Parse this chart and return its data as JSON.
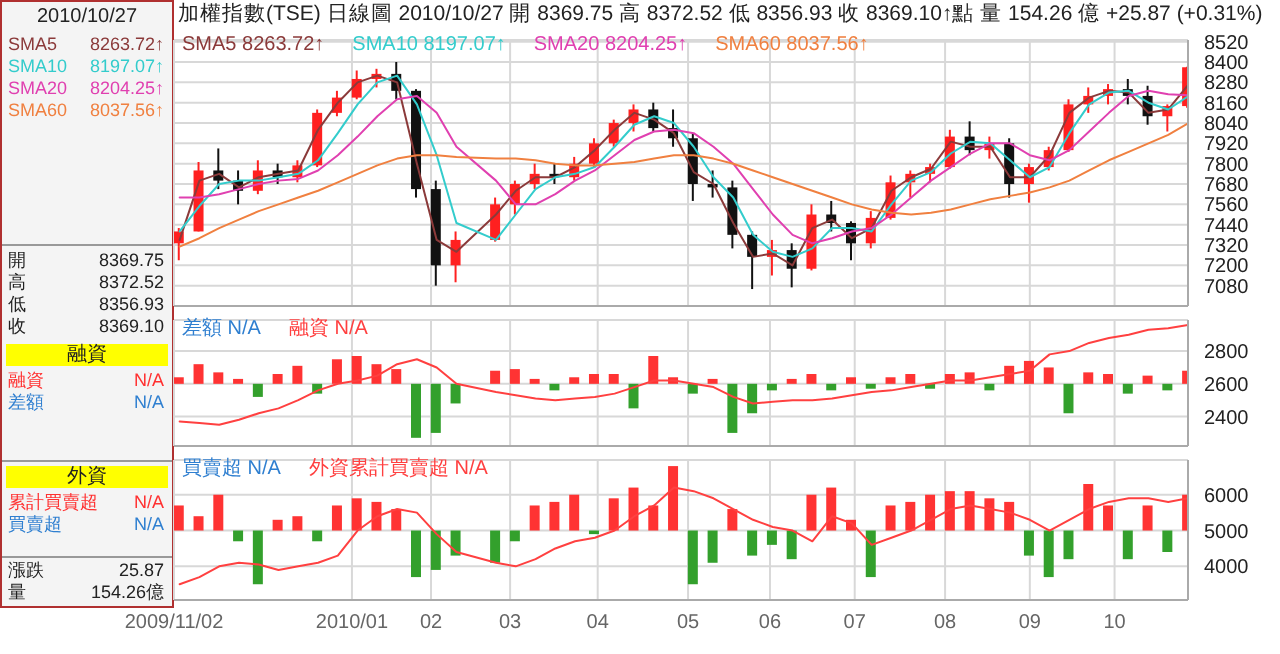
{
  "chart_data": [
    {
      "type": "other",
      "annotations": [
        "2010/10/27",
        "SMA5",
        "8263.72↑",
        "SMA10",
        "8197.07↑",
        "SMA20",
        "8204.25↑",
        "SMA60",
        "8037.56↑",
        "開",
        "8369.75",
        "高",
        "8372.52",
        "低",
        "8356.93",
        "收",
        "8369.10",
        "融資",
        "融資",
        "N/A",
        "差額",
        "N/A",
        "外資",
        "累計買賣超",
        "N/A",
        "買賣超",
        "N/A",
        "漲跌",
        "25.87",
        "量",
        "154.26億"
      ]
    },
    {
      "type": "candlestick",
      "title": "加權指數(TSE)  日線圖  2010/10/27  開 8369.75  高 8372.52  低 8356.93  收 8369.10↑點  量 154.26 億  +25.87 (+0.31%)",
      "x": [
        "2009-11-04",
        "2009-11-11",
        "2009-11-18",
        "2009-11-25",
        "2009-12-02",
        "2009-12-09",
        "2009-12-16",
        "2009-12-23",
        "2009-12-30",
        "2010-01-06",
        "2010-01-13",
        "2010-01-20",
        "2010-01-27",
        "2010-02-03",
        "2010-02-10",
        "2010-02-24",
        "2010-03-03",
        "2010-03-10",
        "2010-03-17",
        "2010-03-24",
        "2010-03-31",
        "2010-04-07",
        "2010-04-14",
        "2010-04-21",
        "2010-04-28",
        "2010-05-05",
        "2010-05-12",
        "2010-05-19",
        "2010-05-26",
        "2010-06-02",
        "2010-06-09",
        "2010-06-16",
        "2010-06-23",
        "2010-06-30",
        "2010-07-07",
        "2010-07-14",
        "2010-07-21",
        "2010-07-28",
        "2010-08-04",
        "2010-08-11",
        "2010-08-18",
        "2010-08-25",
        "2010-09-01",
        "2010-09-08",
        "2010-09-15",
        "2010-09-22",
        "2010-09-29",
        "2010-10-06",
        "2010-10-13",
        "2010-10-20",
        "2010-10-27"
      ],
      "ohlc": [
        [
          7330,
          7420,
          7230,
          7400
        ],
        [
          7400,
          7810,
          7400,
          7760
        ],
        [
          7760,
          7890,
          7650,
          7700
        ],
        [
          7700,
          7760,
          7560,
          7640
        ],
        [
          7640,
          7820,
          7620,
          7760
        ],
        [
          7760,
          7800,
          7680,
          7720
        ],
        [
          7720,
          7820,
          7690,
          7790
        ],
        [
          7790,
          8120,
          7780,
          8100
        ],
        [
          8100,
          8230,
          8080,
          8190
        ],
        [
          8190,
          8350,
          8180,
          8300
        ],
        [
          8300,
          8360,
          8250,
          8330
        ],
        [
          8330,
          8400,
          8180,
          8230
        ],
        [
          8230,
          8240,
          7600,
          7650
        ],
        [
          7650,
          7700,
          7080,
          7200
        ],
        [
          7200,
          7400,
          7100,
          7350
        ],
        [
          7350,
          7600,
          7340,
          7560
        ],
        [
          7560,
          7700,
          7500,
          7680
        ],
        [
          7680,
          7800,
          7650,
          7740
        ],
        [
          7740,
          7800,
          7680,
          7720
        ],
        [
          7720,
          7840,
          7700,
          7800
        ],
        [
          7800,
          7950,
          7780,
          7920
        ],
        [
          7920,
          8060,
          7900,
          8040
        ],
        [
          8040,
          8150,
          7990,
          8120
        ],
        [
          8120,
          8160,
          7990,
          8010
        ],
        [
          8010,
          8120,
          7900,
          7950
        ],
        [
          7950,
          7980,
          7580,
          7680
        ],
        [
          7680,
          7760,
          7600,
          7660
        ],
        [
          7660,
          7700,
          7300,
          7380
        ],
        [
          7380,
          7400,
          7060,
          7250
        ],
        [
          7250,
          7350,
          7140,
          7290
        ],
        [
          7290,
          7330,
          7070,
          7180
        ],
        [
          7180,
          7560,
          7170,
          7500
        ],
        [
          7500,
          7580,
          7400,
          7450
        ],
        [
          7450,
          7460,
          7230,
          7330
        ],
        [
          7330,
          7520,
          7300,
          7480
        ],
        [
          7480,
          7730,
          7470,
          7690
        ],
        [
          7690,
          7760,
          7600,
          7740
        ],
        [
          7740,
          7800,
          7690,
          7780
        ],
        [
          7780,
          8000,
          7770,
          7960
        ],
        [
          7960,
          8050,
          7850,
          7880
        ],
        [
          7880,
          7960,
          7830,
          7920
        ],
        [
          7920,
          7950,
          7600,
          7680
        ],
        [
          7680,
          7800,
          7570,
          7780
        ],
        [
          7780,
          7900,
          7760,
          7880
        ],
        [
          7880,
          8180,
          7870,
          8150
        ],
        [
          8150,
          8250,
          8100,
          8200
        ],
        [
          8200,
          8270,
          8150,
          8240
        ],
        [
          8240,
          8300,
          8150,
          8200
        ],
        [
          8200,
          8260,
          8030,
          8080
        ],
        [
          8080,
          8150,
          7990,
          8140
        ],
        [
          8140,
          8372.52,
          8130,
          8369.1
        ]
      ],
      "series": [
        {
          "name": "SMA5 8263.72↑",
          "type": "line",
          "color": "#8b3a3a",
          "values": [
            7350,
            7700,
            7740,
            7660,
            7720,
            7740,
            7760,
            8000,
            8160,
            8280,
            8320,
            8280,
            7800,
            7350,
            7280,
            7500,
            7640,
            7720,
            7720,
            7780,
            7880,
            8000,
            8100,
            8060,
            7980,
            7750,
            7680,
            7450,
            7250,
            7270,
            7200,
            7420,
            7470,
            7360,
            7420,
            7640,
            7720,
            7770,
            7930,
            7900,
            7900,
            7720,
            7720,
            7850,
            8100,
            8190,
            8230,
            8220,
            8100,
            8120,
            8263.72
          ]
        },
        {
          "name": "SMA10 8197.07↑",
          "type": "line",
          "color": "#33cccc",
          "values": [
            7400,
            7550,
            7680,
            7700,
            7700,
            7720,
            7740,
            7820,
            7980,
            8150,
            8280,
            8320,
            8150,
            7850,
            7450,
            7350,
            7500,
            7650,
            7720,
            7740,
            7780,
            7900,
            8030,
            8080,
            8040,
            7900,
            7720,
            7600,
            7380,
            7280,
            7250,
            7300,
            7420,
            7420,
            7400,
            7560,
            7700,
            7750,
            7860,
            7930,
            7920,
            7820,
            7720,
            7780,
            7980,
            8150,
            8220,
            8230,
            8160,
            8120,
            8197.07
          ]
        },
        {
          "name": "SMA20 8204.25↑",
          "type": "line",
          "color": "#e040b0",
          "values": [
            7600,
            7600,
            7620,
            7650,
            7680,
            7700,
            7710,
            7760,
            7850,
            7960,
            8080,
            8180,
            8200,
            8100,
            7900,
            7700,
            7560,
            7560,
            7620,
            7700,
            7760,
            7850,
            7940,
            7990,
            8000,
            7980,
            7900,
            7800,
            7650,
            7500,
            7380,
            7330,
            7360,
            7400,
            7420,
            7500,
            7600,
            7700,
            7780,
            7860,
            7920,
            7920,
            7850,
            7820,
            7880,
            7990,
            8100,
            8200,
            8230,
            8210,
            8204.25
          ]
        },
        {
          "name": "SMA60 8037.56↑",
          "type": "line",
          "color": "#f08040",
          "values": [
            7310,
            7360,
            7420,
            7470,
            7520,
            7560,
            7600,
            7640,
            7690,
            7740,
            7790,
            7830,
            7850,
            7850,
            7840,
            7830,
            7830,
            7820,
            7800,
            7790,
            7790,
            7800,
            7810,
            7830,
            7850,
            7850,
            7830,
            7800,
            7760,
            7720,
            7680,
            7640,
            7600,
            7560,
            7530,
            7510,
            7500,
            7510,
            7530,
            7560,
            7590,
            7610,
            7630,
            7660,
            7700,
            7760,
            7820,
            7870,
            7920,
            7970,
            8037.56
          ]
        }
      ],
      "xlim": [
        "2009-11-02",
        "2010-10-27"
      ],
      "xticks": [
        {
          "value": "2009-11-02",
          "label": null
        },
        {
          "value": "2010-01-04",
          "label": null
        },
        {
          "value": "2010-02-01",
          "label": null
        },
        {
          "value": "2010-03-01",
          "label": null
        },
        {
          "value": "2010-04-01",
          "label": null
        },
        {
          "value": "2010-05-03",
          "label": null
        },
        {
          "value": "2010-06-01",
          "label": null
        },
        {
          "value": "2010-07-01",
          "label": null
        },
        {
          "value": "2010-08-02",
          "label": null
        },
        {
          "value": "2010-09-01",
          "label": null
        },
        {
          "value": "2010-10-01",
          "label": null
        }
      ],
      "ylim": [
        6960,
        8530
      ],
      "yticks": [
        7080,
        7200,
        7320,
        7440,
        7560,
        7680,
        7800,
        7920,
        8040,
        8160,
        8280,
        8400,
        8520
      ],
      "grid": true,
      "legend": "top left",
      "tick_labels": "y",
      "marker": "none"
    },
    {
      "type": "bar",
      "x": [
        "2009-11-04",
        "2009-11-11",
        "2009-11-18",
        "2009-11-25",
        "2009-12-02",
        "2009-12-09",
        "2009-12-16",
        "2009-12-23",
        "2009-12-30",
        "2010-01-06",
        "2010-01-13",
        "2010-01-20",
        "2010-01-27",
        "2010-02-03",
        "2010-02-10",
        "2010-02-24",
        "2010-03-03",
        "2010-03-10",
        "2010-03-17",
        "2010-03-24",
        "2010-03-31",
        "2010-04-07",
        "2010-04-14",
        "2010-04-21",
        "2010-04-28",
        "2010-05-05",
        "2010-05-12",
        "2010-05-19",
        "2010-05-26",
        "2010-06-02",
        "2010-06-09",
        "2010-06-16",
        "2010-06-23",
        "2010-06-30",
        "2010-07-07",
        "2010-07-14",
        "2010-07-21",
        "2010-07-28",
        "2010-08-04",
        "2010-08-11",
        "2010-08-18",
        "2010-08-25",
        "2010-09-01",
        "2010-09-08",
        "2010-09-15",
        "2010-09-22",
        "2010-09-29",
        "2010-10-06",
        "2010-10-13",
        "2010-10-20",
        "2010-10-27"
      ],
      "series": [
        {
          "name": "差額 N/A",
          "type": "bar",
          "color": "#2f7fd0",
          "base": [
            2600,
            2600,
            2600,
            2600,
            2600,
            2600,
            2600,
            2600,
            2600,
            2600,
            2600,
            2600,
            2600,
            2600,
            2600,
            2600,
            2600,
            2600,
            2600,
            2600,
            2600,
            2600,
            2600,
            2600,
            2600,
            2600,
            2600,
            2600,
            2600,
            2600,
            2600,
            2600,
            2600,
            2600,
            2600,
            2600,
            2600,
            2600,
            2600,
            2600,
            2600,
            2600,
            2600,
            2600,
            2600,
            2600,
            2600,
            2600,
            2600,
            2600,
            2600
          ],
          "values": [
            40,
            120,
            70,
            30,
            -80,
            60,
            110,
            -60,
            150,
            170,
            120,
            90,
            -330,
            -300,
            -120,
            80,
            90,
            30,
            -40,
            40,
            60,
            60,
            -150,
            170,
            40,
            -60,
            30,
            -300,
            -180,
            -40,
            30,
            60,
            -40,
            40,
            -30,
            40,
            60,
            -30,
            60,
            70,
            -40,
            110,
            140,
            100,
            -180,
            70,
            60,
            -60,
            50,
            -40,
            80
          ],
          "colors": [
            "#ff3333",
            "#ff3333",
            "#ff3333",
            "#ff3333",
            "#33a02c",
            "#ff3333",
            "#ff3333",
            "#33a02c",
            "#ff3333",
            "#ff3333",
            "#ff3333",
            "#ff3333",
            "#33a02c",
            "#33a02c",
            "#33a02c",
            "#ff3333",
            "#ff3333",
            "#ff3333",
            "#33a02c",
            "#ff3333",
            "#ff3333",
            "#ff3333",
            "#33a02c",
            "#ff3333",
            "#ff3333",
            "#33a02c",
            "#ff3333",
            "#33a02c",
            "#33a02c",
            "#33a02c",
            "#ff3333",
            "#ff3333",
            "#33a02c",
            "#ff3333",
            "#33a02c",
            "#ff3333",
            "#ff3333",
            "#33a02c",
            "#ff3333",
            "#ff3333",
            "#33a02c",
            "#ff3333",
            "#ff3333",
            "#ff3333",
            "#33a02c",
            "#ff3333",
            "#ff3333",
            "#33a02c",
            "#ff3333",
            "#33a02c",
            "#ff3333"
          ]
        },
        {
          "name": "融資 N/A",
          "type": "line",
          "color": "#ff4040",
          "values": [
            2370,
            2360,
            2350,
            2380,
            2420,
            2450,
            2500,
            2560,
            2600,
            2620,
            2650,
            2720,
            2750,
            2700,
            2600,
            2550,
            2530,
            2510,
            2500,
            2510,
            2520,
            2540,
            2580,
            2620,
            2620,
            2600,
            2580,
            2520,
            2480,
            2490,
            2500,
            2500,
            2510,
            2530,
            2550,
            2560,
            2580,
            2600,
            2620,
            2620,
            2640,
            2660,
            2680,
            2780,
            2800,
            2850,
            2880,
            2900,
            2930,
            2940,
            2960
          ]
        }
      ],
      "xlim": [
        "2009-11-02",
        "2010-10-27"
      ],
      "xticks": [
        {
          "value": "2009-11-02",
          "label": null
        },
        {
          "value": "2010-01-04",
          "label": null
        },
        {
          "value": "2010-02-01",
          "label": null
        },
        {
          "value": "2010-03-01",
          "label": null
        },
        {
          "value": "2010-04-01",
          "label": null
        },
        {
          "value": "2010-05-03",
          "label": null
        },
        {
          "value": "2010-06-01",
          "label": null
        },
        {
          "value": "2010-07-01",
          "label": null
        },
        {
          "value": "2010-08-02",
          "label": null
        },
        {
          "value": "2010-09-01",
          "label": null
        },
        {
          "value": "2010-10-01",
          "label": null
        }
      ],
      "ylim": [
        2220,
        2990
      ],
      "yticks": [
        2400,
        2600,
        2800
      ],
      "grid": true,
      "legend": "top left",
      "tick_labels": "y",
      "marker": "none"
    },
    {
      "type": "bar",
      "x": [
        "2009-11-04",
        "2009-11-11",
        "2009-11-18",
        "2009-11-25",
        "2009-12-02",
        "2009-12-09",
        "2009-12-16",
        "2009-12-23",
        "2009-12-30",
        "2010-01-06",
        "2010-01-13",
        "2010-01-20",
        "2010-01-27",
        "2010-02-03",
        "2010-02-10",
        "2010-02-24",
        "2010-03-03",
        "2010-03-10",
        "2010-03-17",
        "2010-03-24",
        "2010-03-31",
        "2010-04-07",
        "2010-04-14",
        "2010-04-21",
        "2010-04-28",
        "2010-05-05",
        "2010-05-12",
        "2010-05-19",
        "2010-05-26",
        "2010-06-02",
        "2010-06-09",
        "2010-06-16",
        "2010-06-23",
        "2010-06-30",
        "2010-07-07",
        "2010-07-14",
        "2010-07-21",
        "2010-07-28",
        "2010-08-04",
        "2010-08-11",
        "2010-08-18",
        "2010-08-25",
        "2010-09-01",
        "2010-09-08",
        "2010-09-15",
        "2010-09-22",
        "2010-09-29",
        "2010-10-06",
        "2010-10-13",
        "2010-10-20",
        "2010-10-27"
      ],
      "series": [
        {
          "name": "買賣超 N/A",
          "type": "bar",
          "color": "#2f7fd0",
          "base": [
            5000,
            5000,
            5000,
            5000,
            5000,
            5000,
            5000,
            5000,
            5000,
            5000,
            5000,
            5000,
            5000,
            5000,
            5000,
            5000,
            5000,
            5000,
            5000,
            5000,
            5000,
            5000,
            5000,
            5000,
            5000,
            5000,
            5000,
            5000,
            5000,
            5000,
            5000,
            5000,
            5000,
            5000,
            5000,
            5000,
            5000,
            5000,
            5000,
            5000,
            5000,
            5000,
            5000,
            5000,
            5000,
            5000,
            5000,
            5000,
            5000,
            5000,
            5000
          ],
          "values": [
            700,
            400,
            1000,
            -300,
            -1500,
            300,
            400,
            -300,
            700,
            900,
            800,
            600,
            -1300,
            -1100,
            -700,
            -900,
            -300,
            700,
            800,
            1000,
            -100,
            900,
            1200,
            700,
            1800,
            -1500,
            -900,
            600,
            -700,
            -400,
            -800,
            1000,
            1200,
            300,
            -1300,
            700,
            800,
            1000,
            1100,
            1100,
            900,
            800,
            -700,
            -1300,
            -800,
            1300,
            700,
            -800,
            700,
            -600,
            1000
          ],
          "colors": [
            "#ff3333",
            "#ff3333",
            "#ff3333",
            "#33a02c",
            "#33a02c",
            "#ff3333",
            "#ff3333",
            "#33a02c",
            "#ff3333",
            "#ff3333",
            "#ff3333",
            "#ff3333",
            "#33a02c",
            "#33a02c",
            "#33a02c",
            "#33a02c",
            "#33a02c",
            "#ff3333",
            "#ff3333",
            "#ff3333",
            "#33a02c",
            "#ff3333",
            "#ff3333",
            "#ff3333",
            "#ff3333",
            "#33a02c",
            "#33a02c",
            "#ff3333",
            "#33a02c",
            "#33a02c",
            "#33a02c",
            "#ff3333",
            "#ff3333",
            "#ff3333",
            "#33a02c",
            "#ff3333",
            "#ff3333",
            "#ff3333",
            "#ff3333",
            "#ff3333",
            "#ff3333",
            "#ff3333",
            "#33a02c",
            "#33a02c",
            "#33a02c",
            "#ff3333",
            "#ff3333",
            "#33a02c",
            "#ff3333",
            "#33a02c",
            "#ff3333"
          ]
        },
        {
          "name": "外資累計買賣超 N/A",
          "type": "line",
          "color": "#ff4040",
          "values": [
            3500,
            3700,
            4000,
            4100,
            4050,
            3900,
            4000,
            4100,
            4300,
            5000,
            5400,
            5600,
            5500,
            4900,
            4400,
            4100,
            4000,
            4200,
            4500,
            4700,
            4800,
            5000,
            5400,
            5700,
            6200,
            6100,
            5900,
            5600,
            5300,
            5100,
            5000,
            4700,
            5400,
            5200,
            4600,
            4800,
            5000,
            5300,
            5600,
            5700,
            5600,
            5500,
            5300,
            5000,
            5300,
            5600,
            5800,
            5900,
            5900,
            5800,
            5900
          ]
        }
      ],
      "xlim": [
        "2009-11-02",
        "2010-10-27"
      ],
      "xticks": [
        {
          "value": "2009-11-02",
          "label": "2009/11/02"
        },
        {
          "value": "2010-01-04",
          "label": "2010/01"
        },
        {
          "value": "2010-02-01",
          "label": "02"
        },
        {
          "value": "2010-03-01",
          "label": "03"
        },
        {
          "value": "2010-04-01",
          "label": "04"
        },
        {
          "value": "2010-05-03",
          "label": "05"
        },
        {
          "value": "2010-06-01",
          "label": "06"
        },
        {
          "value": "2010-07-01",
          "label": "07"
        },
        {
          "value": "2010-08-02",
          "label": "08"
        },
        {
          "value": "2010-09-01",
          "label": "09"
        },
        {
          "value": "2010-10-01",
          "label": "10"
        }
      ],
      "ylim": [
        3060,
        6970
      ],
      "yticks": [
        4000,
        5000,
        6000
      ],
      "grid": true,
      "legend": "top left",
      "marker": "none"
    }
  ]
}
